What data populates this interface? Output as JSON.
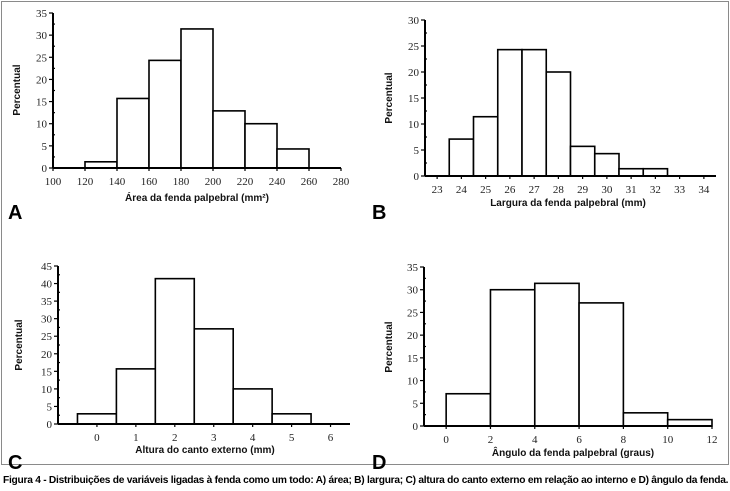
{
  "caption": "Figura 4 - Distribuições de variáveis ligadas à fenda como um todo: A) área; B) largura; C) altura do canto externo em relação ao interno e D) ângulo da fenda.",
  "chart_data": [
    {
      "panel": "A",
      "type": "bar",
      "histogram": true,
      "xlabel": "Área da fenda palpebral (mm²)",
      "ylabel": "Percentual",
      "xlim": [
        100,
        280
      ],
      "ylim": [
        0,
        35
      ],
      "xticks": [
        100,
        120,
        140,
        160,
        180,
        200,
        220,
        240,
        260,
        280
      ],
      "yticks": [
        0,
        5,
        10,
        15,
        20,
        25,
        30,
        35
      ],
      "bins": [
        [
          120,
          140
        ],
        [
          140,
          160
        ],
        [
          160,
          180
        ],
        [
          180,
          200
        ],
        [
          200,
          220
        ],
        [
          220,
          240
        ],
        [
          240,
          260
        ]
      ],
      "values": [
        1.4,
        15.7,
        24.3,
        31.4,
        12.9,
        10.0,
        4.3
      ],
      "grid": false
    },
    {
      "panel": "B",
      "type": "bar",
      "histogram": true,
      "xlabel": "Largura da fenda palpebral (mm)",
      "ylabel": "Percentual",
      "xlim": [
        22.5,
        34.5
      ],
      "ylim": [
        0,
        30
      ],
      "xticks": [
        23,
        24,
        25,
        26,
        27,
        28,
        29,
        30,
        31,
        32,
        33,
        34
      ],
      "yticks": [
        0,
        5,
        10,
        15,
        20,
        25,
        30
      ],
      "categories": [
        24,
        25,
        26,
        27,
        28,
        29,
        30,
        31,
        32
      ],
      "values": [
        7.1,
        11.4,
        24.3,
        24.3,
        20.0,
        5.7,
        4.3,
        1.4,
        1.4
      ],
      "grid": false
    },
    {
      "panel": "C",
      "type": "bar",
      "histogram": true,
      "xlabel": "Altura do canto externo (mm)",
      "ylabel": "Percentual",
      "xlim": [
        -1,
        6.5
      ],
      "ylim": [
        0,
        45
      ],
      "xticks": [
        0,
        1,
        2,
        3,
        4,
        5,
        6
      ],
      "yticks": [
        0,
        5,
        10,
        15,
        20,
        25,
        30,
        35,
        40,
        45
      ],
      "categories": [
        0,
        1,
        2,
        3,
        4,
        5
      ],
      "values": [
        2.9,
        15.7,
        41.4,
        27.1,
        10.0,
        2.9
      ],
      "grid": false
    },
    {
      "panel": "D",
      "type": "bar",
      "histogram": true,
      "xlabel": "Ângulo da fenda palpebral (graus)",
      "ylabel": "Percentual",
      "xlim": [
        -1,
        12
      ],
      "ylim": [
        0,
        35
      ],
      "xticks": [
        0,
        2,
        4,
        6,
        8,
        10,
        12
      ],
      "yticks": [
        0,
        5,
        10,
        15,
        20,
        25,
        30,
        35
      ],
      "bins": [
        [
          0,
          2
        ],
        [
          2,
          4
        ],
        [
          4,
          6
        ],
        [
          6,
          8
        ],
        [
          8,
          10
        ],
        [
          10,
          12
        ]
      ],
      "values": [
        7.1,
        30.0,
        31.4,
        27.1,
        2.9,
        1.4
      ],
      "grid": false
    }
  ]
}
